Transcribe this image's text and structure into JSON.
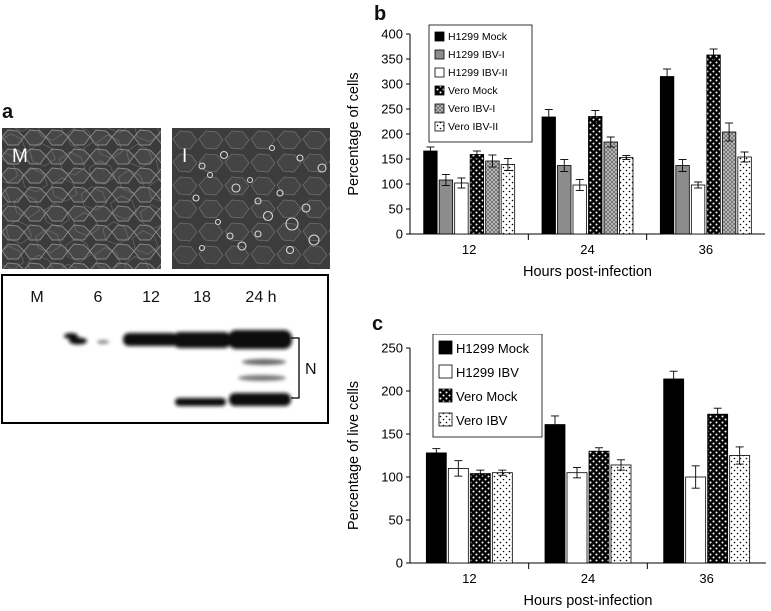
{
  "figure": {
    "panel_a": {
      "letter": "a",
      "micrographs": [
        {
          "label": "M"
        },
        {
          "label": "I"
        }
      ],
      "blot": {
        "lanes": [
          "M",
          "6",
          "12",
          "18",
          "24 h"
        ],
        "band_label": "N"
      }
    },
    "panel_b": {
      "letter": "b"
    },
    "panel_c": {
      "letter": "c"
    }
  },
  "chart_data": [
    {
      "type": "bar",
      "panel": "b",
      "categories": [
        "12",
        "24",
        "36"
      ],
      "xlabel": "Hours post-infection",
      "ylabel": "Percentage of cells",
      "ylim": [
        0,
        400
      ],
      "yticks": [
        0,
        50,
        100,
        150,
        200,
        250,
        300,
        350,
        400
      ],
      "legend_position": "top-left",
      "series": [
        {
          "name": "H1299 Mock",
          "color": "#000000",
          "pattern": "solid",
          "values": [
            166,
            234,
            315
          ],
          "errors": [
            8,
            15,
            15
          ]
        },
        {
          "name": "H1299 IBV-I",
          "color": "#8c8c8c",
          "pattern": "solid",
          "values": [
            108,
            137,
            137
          ],
          "errors": [
            11,
            12,
            12
          ]
        },
        {
          "name": "H1299 IBV-II",
          "color": "#ffffff",
          "pattern": "solid",
          "values": [
            102,
            98,
            98
          ],
          "errors": [
            10,
            11,
            6
          ]
        },
        {
          "name": "Vero Mock",
          "color": "#000000",
          "pattern": "dots-on-dark",
          "values": [
            159,
            235,
            358
          ],
          "errors": [
            7,
            12,
            12
          ]
        },
        {
          "name": "Vero IBV-I",
          "color": "#b0b0b0",
          "pattern": "crosshatch",
          "values": [
            146,
            184,
            204
          ],
          "errors": [
            12,
            10,
            18
          ]
        },
        {
          "name": "Vero IBV-II",
          "color": "#ffffff",
          "pattern": "dots-on-light",
          "values": [
            139,
            153,
            154
          ],
          "errors": [
            12,
            4,
            10
          ]
        }
      ]
    },
    {
      "type": "bar",
      "panel": "c",
      "categories": [
        "12",
        "24",
        "36"
      ],
      "xlabel": "Hours post-infection",
      "ylabel": "Percentage of live cells",
      "ylim": [
        0,
        250
      ],
      "yticks": [
        0,
        50,
        100,
        150,
        200,
        250
      ],
      "legend_position": "top-left",
      "series": [
        {
          "name": "H1299 Mock",
          "color": "#000000",
          "pattern": "solid",
          "values": [
            128,
            161,
            214
          ],
          "errors": [
            5,
            10,
            9
          ]
        },
        {
          "name": "H1299 IBV",
          "color": "#ffffff",
          "pattern": "solid",
          "values": [
            110,
            105,
            100
          ],
          "errors": [
            9,
            6,
            13
          ]
        },
        {
          "name": "Vero Mock",
          "color": "#000000",
          "pattern": "dots-on-dark",
          "values": [
            104,
            130,
            173
          ],
          "errors": [
            4,
            4,
            7
          ]
        },
        {
          "name": "Vero IBV",
          "color": "#ffffff",
          "pattern": "dots-on-light",
          "values": [
            105,
            114,
            125
          ],
          "errors": [
            3,
            6,
            10
          ]
        }
      ]
    }
  ]
}
